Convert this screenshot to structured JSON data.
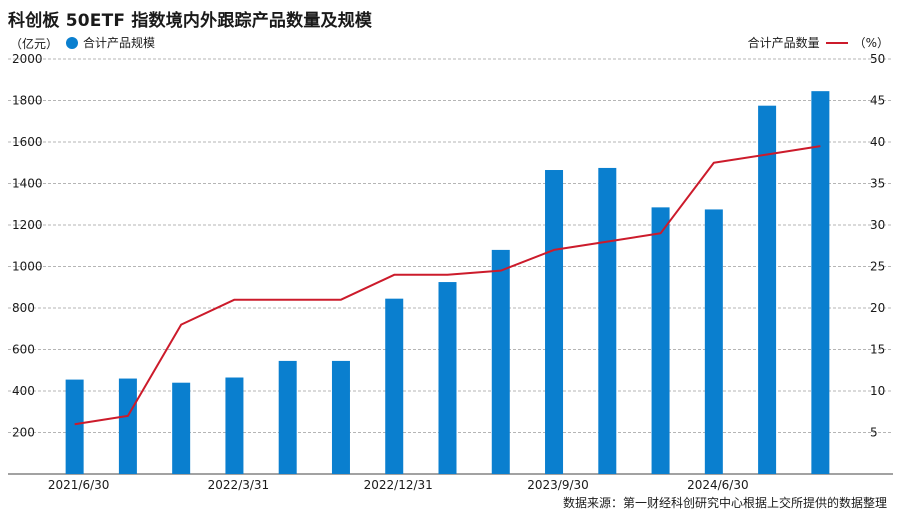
{
  "chart_data": {
    "type": "bar",
    "title": "科创板 50ETF 指数境内外跟踪产品数量及规模",
    "left_unit": "（亿元）",
    "right_unit": "（%）",
    "source": "数据来源：第一财经科创研究中心根据上交所提供的数据整理",
    "x_tick_labels": [
      "2021/6/30",
      "2022/3/31",
      "2022/12/31",
      "2023/9/30",
      "2024/6/30"
    ],
    "x_tick_indices": [
      0,
      3,
      6,
      9,
      12
    ],
    "left_axis": {
      "ylim": [
        0,
        2000
      ],
      "ticks": [
        200,
        400,
        600,
        800,
        1000,
        1200,
        1400,
        1600,
        1800,
        2000
      ]
    },
    "right_axis": {
      "ylim": [
        0,
        50
      ],
      "ticks": [
        5,
        10,
        15,
        20,
        25,
        30,
        35,
        40,
        45,
        50
      ]
    },
    "grid": true,
    "series": [
      {
        "name": "合计产品规模",
        "kind": "bar",
        "axis": "left",
        "color": "#0a7fcf",
        "values": [
          455,
          460,
          440,
          465,
          545,
          545,
          845,
          925,
          1080,
          1465,
          1475,
          1285,
          1275,
          1775,
          1845
        ]
      },
      {
        "name": "合计产品数量",
        "kind": "line",
        "axis": "right",
        "color": "#cc1b2b",
        "values": [
          6,
          7,
          18,
          21,
          21,
          21,
          24,
          24,
          24.5,
          27,
          28,
          29,
          37.5,
          38.5,
          39.5
        ]
      }
    ]
  }
}
